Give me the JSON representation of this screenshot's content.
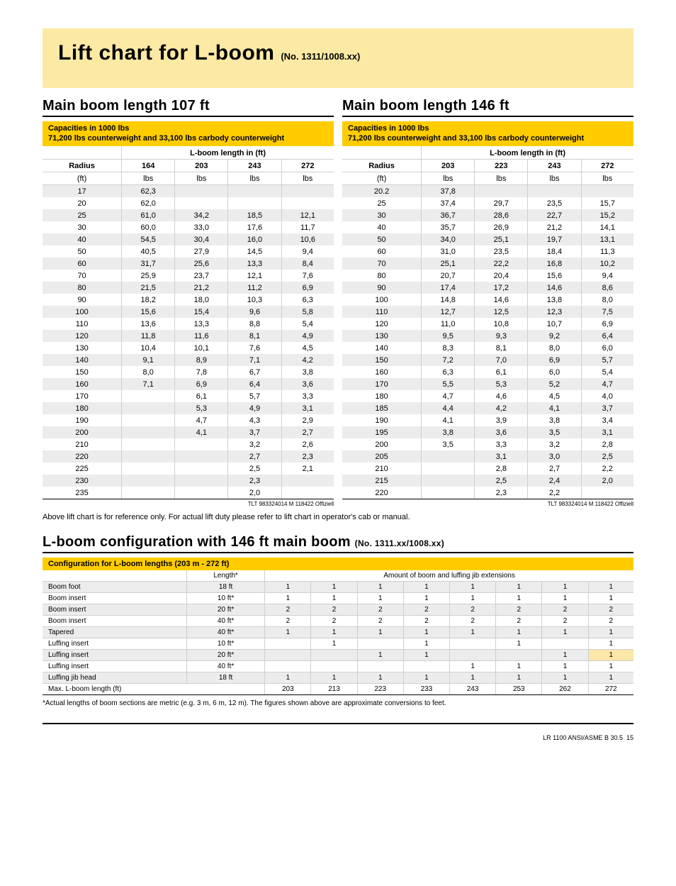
{
  "colors": {
    "title_band_bg": "#fceaa4",
    "yellow_band_bg": "#ffcc00",
    "row_alt_bg": "#ececec",
    "highlight_bg": "#fce6a8",
    "border_light": "#cfcfcf",
    "text": "#000000",
    "page_bg": "#ffffff"
  },
  "title": "Lift chart for L-boom",
  "title_sub": "(No. 1311/1008.xx)",
  "tables": {
    "left": {
      "heading": "Main boom length 107 ft",
      "caption_line1": "Capacities in 1000 lbs",
      "caption_line2": "71,200 lbs counterweight and 33,100 lbs carbody counterweight",
      "span_header": "L-boom length in (ft)",
      "radius_label": "Radius",
      "col_headers": [
        "164",
        "203",
        "243",
        "272"
      ],
      "unit_row": [
        "(ft)",
        "lbs",
        "lbs",
        "lbs",
        "lbs"
      ],
      "rows": [
        [
          "17",
          "62,3",
          "",
          "",
          ""
        ],
        [
          "20",
          "62,0",
          "",
          "",
          ""
        ],
        [
          "25",
          "61,0",
          "34,2",
          "18,5",
          "12,1"
        ],
        [
          "30",
          "60,0",
          "33,0",
          "17,6",
          "11,7"
        ],
        [
          "40",
          "54,5",
          "30,4",
          "16,0",
          "10,6"
        ],
        [
          "50",
          "40,5",
          "27,9",
          "14,5",
          "9,4"
        ],
        [
          "60",
          "31,7",
          "25,6",
          "13,3",
          "8,4"
        ],
        [
          "70",
          "25,9",
          "23,7",
          "12,1",
          "7,6"
        ],
        [
          "80",
          "21,5",
          "21,2",
          "11,2",
          "6,9"
        ],
        [
          "90",
          "18,2",
          "18,0",
          "10,3",
          "6,3"
        ],
        [
          "100",
          "15,6",
          "15,4",
          "9,6",
          "5,8"
        ],
        [
          "110",
          "13,6",
          "13,3",
          "8,8",
          "5,4"
        ],
        [
          "120",
          "11,8",
          "11,6",
          "8,1",
          "4,9"
        ],
        [
          "130",
          "10,4",
          "10,1",
          "7,6",
          "4,5"
        ],
        [
          "140",
          "9,1",
          "8,9",
          "7,1",
          "4,2"
        ],
        [
          "150",
          "8,0",
          "7,8",
          "6,7",
          "3,8"
        ],
        [
          "160",
          "7,1",
          "6,9",
          "6,4",
          "3,6"
        ],
        [
          "170",
          "",
          "6,1",
          "5,7",
          "3,3"
        ],
        [
          "180",
          "",
          "5,3",
          "4,9",
          "3,1"
        ],
        [
          "190",
          "",
          "4,7",
          "4,3",
          "2,9"
        ],
        [
          "200",
          "",
          "4,1",
          "3,7",
          "2,7"
        ],
        [
          "210",
          "",
          "",
          "3,2",
          "2,6"
        ],
        [
          "220",
          "",
          "",
          "2,7",
          "2,3"
        ],
        [
          "225",
          "",
          "",
          "2,5",
          "2,1"
        ],
        [
          "230",
          "",
          "",
          "2,3",
          ""
        ],
        [
          "235",
          "",
          "",
          "2,0",
          ""
        ]
      ],
      "footer": "TLT 983324014 M 118422 Offiziell"
    },
    "right": {
      "heading": "Main boom length 146 ft",
      "caption_line1": "Capacities in 1000 lbs",
      "caption_line2": "71,200 lbs counterweight and 33,100 lbs carbody counterweight",
      "span_header": "L-boom length in (ft)",
      "radius_label": "Radius",
      "col_headers": [
        "203",
        "223",
        "243",
        "272"
      ],
      "unit_row": [
        "(ft)",
        "lbs",
        "lbs",
        "lbs",
        "lbs"
      ],
      "rows": [
        [
          "20.2",
          "37,8",
          "",
          "",
          ""
        ],
        [
          "25",
          "37,4",
          "29,7",
          "23,5",
          "15,7"
        ],
        [
          "30",
          "36,7",
          "28,6",
          "22,7",
          "15,2"
        ],
        [
          "40",
          "35,7",
          "26,9",
          "21,2",
          "14,1"
        ],
        [
          "50",
          "34,0",
          "25,1",
          "19,7",
          "13,1"
        ],
        [
          "60",
          "31,0",
          "23,5",
          "18,4",
          "11,3"
        ],
        [
          "70",
          "25,1",
          "22,2",
          "16,8",
          "10,2"
        ],
        [
          "80",
          "20,7",
          "20,4",
          "15,6",
          "9,4"
        ],
        [
          "90",
          "17,4",
          "17,2",
          "14,6",
          "8,6"
        ],
        [
          "100",
          "14,8",
          "14,6",
          "13,8",
          "8,0"
        ],
        [
          "110",
          "12,7",
          "12,5",
          "12,3",
          "7,5"
        ],
        [
          "120",
          "11,0",
          "10,8",
          "10,7",
          "6,9"
        ],
        [
          "130",
          "9,5",
          "9,3",
          "9,2",
          "6,4"
        ],
        [
          "140",
          "8,3",
          "8,1",
          "8,0",
          "6,0"
        ],
        [
          "150",
          "7,2",
          "7,0",
          "6,9",
          "5,7"
        ],
        [
          "160",
          "6,3",
          "6,1",
          "6,0",
          "5,4"
        ],
        [
          "170",
          "5,5",
          "5,3",
          "5,2",
          "4,7"
        ],
        [
          "180",
          "4,7",
          "4,6",
          "4,5",
          "4,0"
        ],
        [
          "185",
          "4,4",
          "4,2",
          "4,1",
          "3,7"
        ],
        [
          "190",
          "4,1",
          "3,9",
          "3,8",
          "3,4"
        ],
        [
          "195",
          "3,8",
          "3,6",
          "3,5",
          "3,1"
        ],
        [
          "200",
          "3,5",
          "3,3",
          "3,2",
          "2,8"
        ],
        [
          "205",
          "",
          "3,1",
          "3,0",
          "2,5"
        ],
        [
          "210",
          "",
          "2,8",
          "2,7",
          "2,2"
        ],
        [
          "215",
          "",
          "2,5",
          "2,4",
          "2,0"
        ],
        [
          "220",
          "",
          "2,3",
          "2,2",
          ""
        ]
      ],
      "footer": "TLT 983324014 M 118422 Offiziell"
    }
  },
  "mid_note": "Above lift chart is for reference only. For actual lift duty please refer to lift chart in operator's cab or manual.",
  "config": {
    "heading": "L-boom configuration with 146 ft main boom",
    "heading_sub": "(No. 1311.xx/1008.xx)",
    "caption": "Configuration for L-boom lengths (203 m - 272 ft)",
    "length_label": "Length*",
    "span_header": "Amount of boom and luffing jib extensions",
    "rows": [
      {
        "name": "Boom foot",
        "len": "18 ft",
        "vals": [
          "1",
          "1",
          "1",
          "1",
          "1",
          "1",
          "1",
          "1"
        ],
        "shade": true
      },
      {
        "name": "Boom insert",
        "len": "10 ft*",
        "vals": [
          "1",
          "1",
          "1",
          "1",
          "1",
          "1",
          "1",
          "1"
        ],
        "shade": false
      },
      {
        "name": "Boom insert",
        "len": "20 ft*",
        "vals": [
          "2",
          "2",
          "2",
          "2",
          "2",
          "2",
          "2",
          "2"
        ],
        "shade": true
      },
      {
        "name": "Boom insert",
        "len": "40 ft*",
        "vals": [
          "2",
          "2",
          "2",
          "2",
          "2",
          "2",
          "2",
          "2"
        ],
        "shade": false
      },
      {
        "name": "Tapered",
        "len": "40 ft*",
        "vals": [
          "1",
          "1",
          "1",
          "1",
          "1",
          "1",
          "1",
          "1"
        ],
        "shade": true
      },
      {
        "name": "Luffing insert",
        "len": "10 ft*",
        "vals": [
          "",
          "1",
          "",
          "1",
          "",
          "1",
          "",
          "1"
        ],
        "shade": false
      },
      {
        "name": "Luffing insert",
        "len": "20 ft*",
        "vals": [
          "",
          "",
          "1",
          "1",
          "",
          "",
          "1",
          "1"
        ],
        "shade": true,
        "highlight_last": true
      },
      {
        "name": "Luffing insert",
        "len": "40 ft*",
        "vals": [
          "",
          "",
          "",
          "",
          "1",
          "1",
          "1",
          "1"
        ],
        "shade": false
      },
      {
        "name": "Luffing jib head",
        "len": "18 ft",
        "vals": [
          "1",
          "1",
          "1",
          "1",
          "1",
          "1",
          "1",
          "1"
        ],
        "shade": true
      }
    ],
    "total_label": "Max. L-boom length (ft)",
    "totals": [
      "203",
      "213",
      "223",
      "233",
      "243",
      "253",
      "262",
      "272"
    ]
  },
  "asterisk_note": "*Actual lengths of boom sections are metric (e.g. 3 m, 6 m, 12 m). The figures shown above are approximate conversions to feet.",
  "page_foot_left": "LR 1100 ANSI/ASME B 30.5",
  "page_number": "15"
}
